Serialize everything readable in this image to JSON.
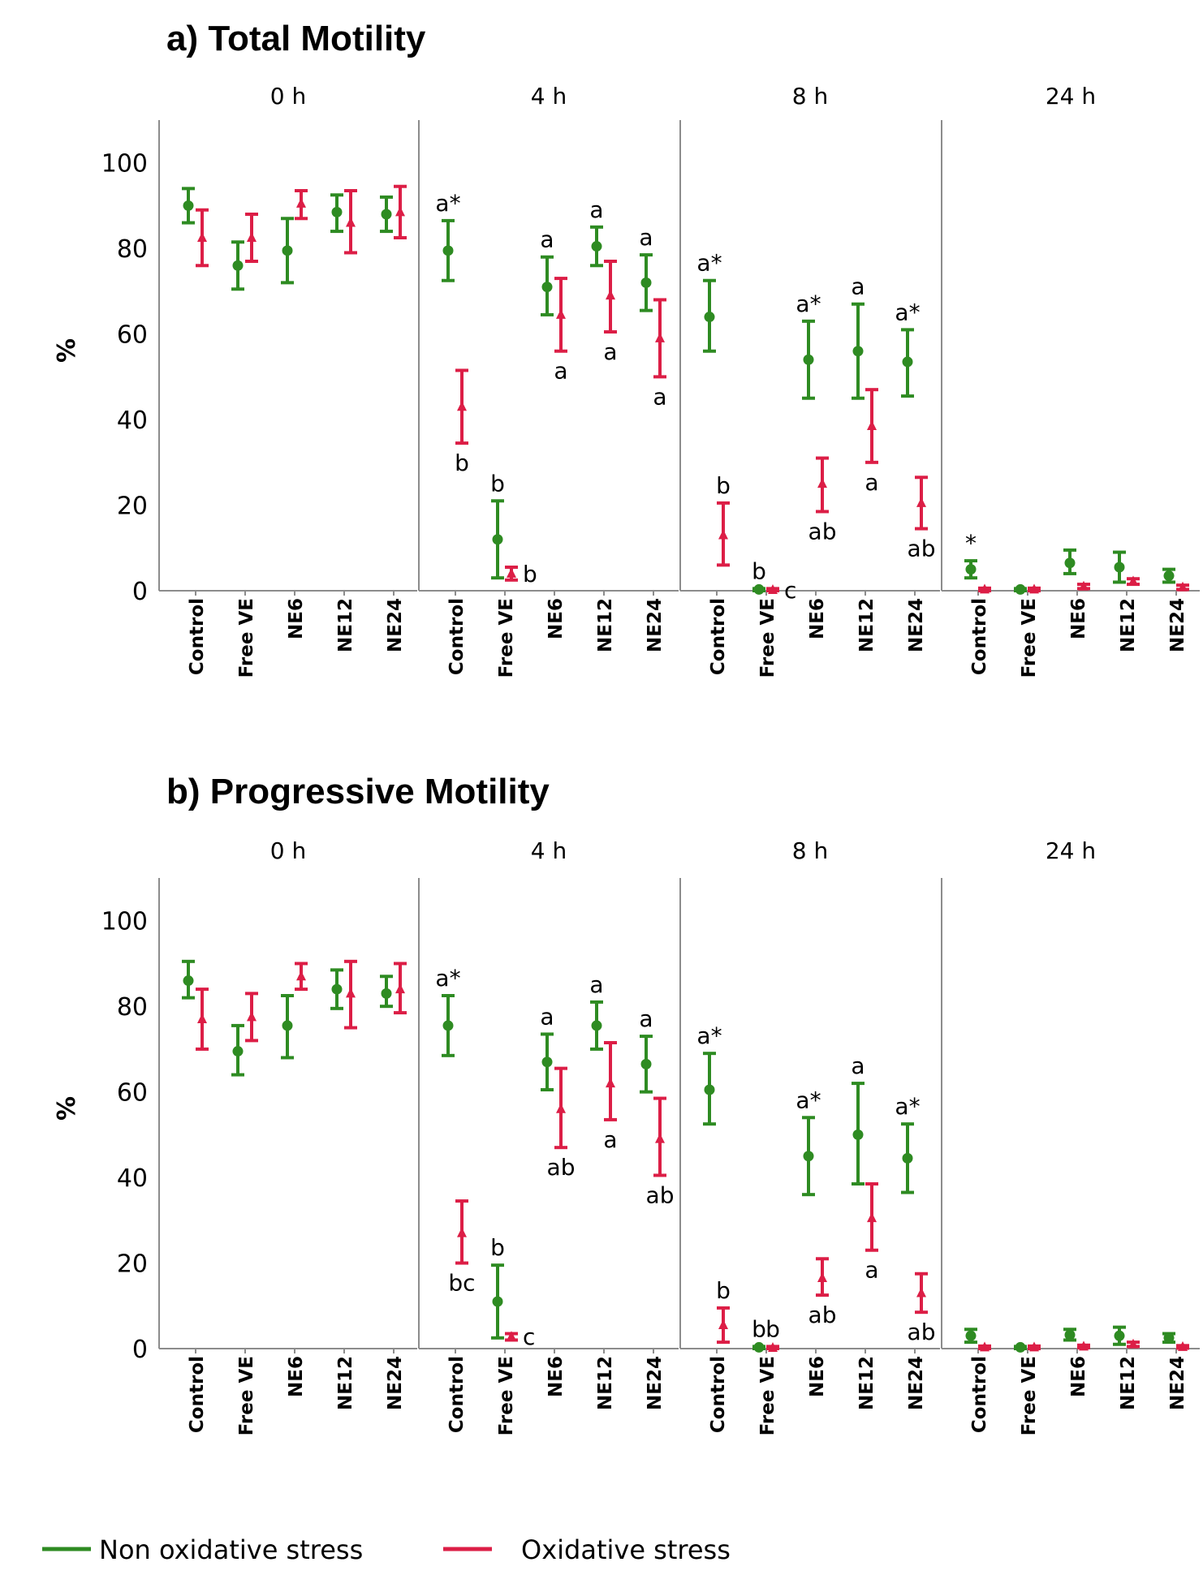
{
  "chart_data": [
    {
      "type": "scatter",
      "title": "a) Total Motility",
      "ylabel": "%",
      "ylim": [
        0,
        110
      ],
      "yticks": [
        "0",
        "20",
        "40",
        "60",
        "80",
        "100"
      ],
      "categories": [
        "Control",
        "Free VE",
        "NE6",
        "NE12",
        "NE24"
      ],
      "facets": [
        {
          "label": "0 h",
          "series": [
            {
              "name": "Non oxidative stress",
              "mean": [
                90,
                76,
                79.5,
                88.5,
                88
              ],
              "low": [
                86,
                70.5,
                72,
                84,
                84
              ],
              "high": [
                94,
                81.5,
                87,
                92.5,
                92
              ]
            },
            {
              "name": "Oxidative stress",
              "mean": [
                82.5,
                82.5,
                90.5,
                86,
                88.5
              ],
              "low": [
                76,
                77,
                87,
                79,
                82.5
              ],
              "high": [
                89,
                88,
                93.5,
                93.5,
                94.5
              ]
            }
          ],
          "annotations": []
        },
        {
          "label": "4 h",
          "series": [
            {
              "name": "Non oxidative stress",
              "mean": [
                79.5,
                12,
                71,
                80.5,
                72
              ],
              "low": [
                72.5,
                3,
                64.5,
                76,
                65.5
              ],
              "high": [
                86.5,
                21,
                78,
                85,
                78.5
              ]
            },
            {
              "name": "Oxidative stress",
              "mean": [
                43,
                4,
                64.5,
                69,
                59
              ],
              "low": [
                34.5,
                2.5,
                56,
                60.5,
                50
              ],
              "high": [
                51.5,
                5.5,
                73,
                77,
                68
              ]
            }
          ],
          "annotations": [
            {
              "series": 0,
              "cat": 0,
              "text": "a*",
              "pos": "above"
            },
            {
              "series": 1,
              "cat": 0,
              "text": "b",
              "pos": "below"
            },
            {
              "series": 0,
              "cat": 1,
              "text": "b",
              "pos": "above"
            },
            {
              "series": 1,
              "cat": 1,
              "text": "b",
              "pos": "right"
            },
            {
              "series": 0,
              "cat": 2,
              "text": "a",
              "pos": "above"
            },
            {
              "series": 1,
              "cat": 2,
              "text": "a",
              "pos": "below"
            },
            {
              "series": 0,
              "cat": 3,
              "text": "a",
              "pos": "above"
            },
            {
              "series": 1,
              "cat": 3,
              "text": "a",
              "pos": "below"
            },
            {
              "series": 0,
              "cat": 4,
              "text": "a",
              "pos": "above"
            },
            {
              "series": 1,
              "cat": 4,
              "text": "a",
              "pos": "below"
            }
          ]
        },
        {
          "label": "8 h",
          "series": [
            {
              "name": "Non oxidative stress",
              "mean": [
                64,
                0.3,
                54,
                56,
                53.5
              ],
              "low": [
                56,
                0,
                45,
                45,
                45.5
              ],
              "high": [
                72.5,
                0.5,
                63,
                67,
                61
              ]
            },
            {
              "name": "Oxidative stress",
              "mean": [
                13,
                0.2,
                25,
                38.5,
                20.5
              ],
              "low": [
                6,
                0,
                18.5,
                30,
                14.5
              ],
              "high": [
                20.5,
                0.5,
                31,
                47,
                26.5
              ]
            }
          ],
          "annotations": [
            {
              "series": 0,
              "cat": 0,
              "text": "a*",
              "pos": "above"
            },
            {
              "series": 1,
              "cat": 0,
              "text": "b",
              "pos": "above"
            },
            {
              "series": 0,
              "cat": 1,
              "text": "b",
              "pos": "above"
            },
            {
              "series": 1,
              "cat": 1,
              "text": "c",
              "pos": "right"
            },
            {
              "series": 0,
              "cat": 2,
              "text": "a*",
              "pos": "above"
            },
            {
              "series": 1,
              "cat": 2,
              "text": "ab",
              "pos": "below"
            },
            {
              "series": 0,
              "cat": 3,
              "text": "a",
              "pos": "above"
            },
            {
              "series": 1,
              "cat": 3,
              "text": "a",
              "pos": "below"
            },
            {
              "series": 0,
              "cat": 4,
              "text": "a*",
              "pos": "above"
            },
            {
              "series": 1,
              "cat": 4,
              "text": "ab",
              "pos": "below"
            }
          ]
        },
        {
          "label": "24 h",
          "series": [
            {
              "name": "Non oxidative stress",
              "mean": [
                5,
                0.3,
                6.5,
                5.5,
                3.5
              ],
              "low": [
                3,
                0,
                4,
                2,
                2
              ],
              "high": [
                7,
                0.5,
                9.5,
                9,
                5
              ]
            },
            {
              "name": "Oxidative stress",
              "mean": [
                0.3,
                0.3,
                1,
                2.2,
                0.8
              ],
              "low": [
                0,
                0,
                0.5,
                1.5,
                0.3
              ],
              "high": [
                0.6,
                0.6,
                1.5,
                2.8,
                1.3
              ]
            }
          ],
          "annotations": [
            {
              "series": 0,
              "cat": 0,
              "text": "*",
              "pos": "above"
            }
          ]
        }
      ]
    },
    {
      "type": "scatter",
      "title": "b) Progressive Motility",
      "ylabel": "%",
      "ylim": [
        0,
        110
      ],
      "yticks": [
        "0",
        "20",
        "40",
        "60",
        "80",
        "100"
      ],
      "categories": [
        "Control",
        "Free VE",
        "NE6",
        "NE12",
        "NE24"
      ],
      "facets": [
        {
          "label": "0 h",
          "series": [
            {
              "name": "Non oxidative stress",
              "mean": [
                86,
                69.5,
                75.5,
                84,
                83
              ],
              "low": [
                82,
                64,
                68,
                79.5,
                80
              ],
              "high": [
                90.5,
                75.5,
                82.5,
                88.5,
                87
              ]
            },
            {
              "name": "Oxidative stress",
              "mean": [
                77,
                77.5,
                87,
                83,
                84
              ],
              "low": [
                70,
                72,
                84,
                75,
                78.5
              ],
              "high": [
                84,
                83,
                90,
                90.5,
                90
              ]
            }
          ],
          "annotations": []
        },
        {
          "label": "4 h",
          "series": [
            {
              "name": "Non oxidative stress",
              "mean": [
                75.5,
                11,
                67,
                75.5,
                66.5
              ],
              "low": [
                68.5,
                2.5,
                60.5,
                70,
                60
              ],
              "high": [
                82.5,
                19.5,
                73.5,
                81,
                73
              ]
            },
            {
              "name": "Oxidative stress",
              "mean": [
                27,
                2.8,
                56,
                62,
                49
              ],
              "low": [
                20,
                2,
                47,
                53.5,
                40.5
              ],
              "high": [
                34.5,
                3.5,
                65.5,
                71.5,
                58.5
              ]
            }
          ],
          "annotations": [
            {
              "series": 0,
              "cat": 0,
              "text": "a*",
              "pos": "above"
            },
            {
              "series": 1,
              "cat": 0,
              "text": "bc",
              "pos": "below"
            },
            {
              "series": 0,
              "cat": 1,
              "text": "b",
              "pos": "above"
            },
            {
              "series": 1,
              "cat": 1,
              "text": "c",
              "pos": "right"
            },
            {
              "series": 0,
              "cat": 2,
              "text": "a",
              "pos": "above"
            },
            {
              "series": 1,
              "cat": 2,
              "text": "ab",
              "pos": "below"
            },
            {
              "series": 0,
              "cat": 3,
              "text": "a",
              "pos": "above"
            },
            {
              "series": 1,
              "cat": 3,
              "text": "a",
              "pos": "below"
            },
            {
              "series": 0,
              "cat": 4,
              "text": "a",
              "pos": "above"
            },
            {
              "series": 1,
              "cat": 4,
              "text": "ab",
              "pos": "below"
            }
          ]
        },
        {
          "label": "8 h",
          "series": [
            {
              "name": "Non oxidative stress",
              "mean": [
                60.5,
                0.3,
                45,
                50,
                44.5
              ],
              "low": [
                52.5,
                0,
                36,
                38.5,
                36.5
              ],
              "high": [
                69,
                0.5,
                54,
                62,
                52.5
              ]
            },
            {
              "name": "Oxidative stress",
              "mean": [
                5.5,
                0.2,
                16.5,
                30.5,
                13
              ],
              "low": [
                1.5,
                0,
                12.5,
                23,
                8.5
              ],
              "high": [
                9.5,
                0.5,
                21,
                38.5,
                17.5
              ]
            }
          ],
          "annotations": [
            {
              "series": 0,
              "cat": 0,
              "text": "a*",
              "pos": "above"
            },
            {
              "series": 1,
              "cat": 0,
              "text": "b",
              "pos": "above"
            },
            {
              "series": 0,
              "cat": 1,
              "text": "b",
              "pos": "above"
            },
            {
              "series": 1,
              "cat": 1,
              "text": "b",
              "pos": "above"
            },
            {
              "series": 0,
              "cat": 2,
              "text": "a*",
              "pos": "above"
            },
            {
              "series": 1,
              "cat": 2,
              "text": "ab",
              "pos": "below"
            },
            {
              "series": 0,
              "cat": 3,
              "text": "a",
              "pos": "above"
            },
            {
              "series": 1,
              "cat": 3,
              "text": "a",
              "pos": "below"
            },
            {
              "series": 0,
              "cat": 4,
              "text": "a*",
              "pos": "above"
            },
            {
              "series": 1,
              "cat": 4,
              "text": "ab",
              "pos": "below"
            }
          ]
        },
        {
          "label": "24 h",
          "series": [
            {
              "name": "Non oxidative stress",
              "mean": [
                3,
                0.3,
                3.2,
                3,
                2.5
              ],
              "low": [
                1.5,
                0,
                2,
                1,
                1.5
              ],
              "high": [
                4.5,
                0.5,
                4.5,
                5,
                3.5
              ]
            },
            {
              "name": "Oxidative stress",
              "mean": [
                0.3,
                0.3,
                0.5,
                1,
                0.4
              ],
              "low": [
                0,
                0,
                0.2,
                0.5,
                0.1
              ],
              "high": [
                0.6,
                0.6,
                0.8,
                1.5,
                0.7
              ]
            }
          ],
          "annotations": []
        }
      ]
    }
  ],
  "legend": [
    {
      "name": "Non oxidative stress",
      "color": "#2e8b22"
    },
    {
      "name": "Oxidative stress",
      "color": "#dc1e46"
    }
  ],
  "colors": {
    "non_oxidative": "#2e8b22",
    "oxidative": "#dc1e46",
    "axis": "#8c8c8c"
  }
}
